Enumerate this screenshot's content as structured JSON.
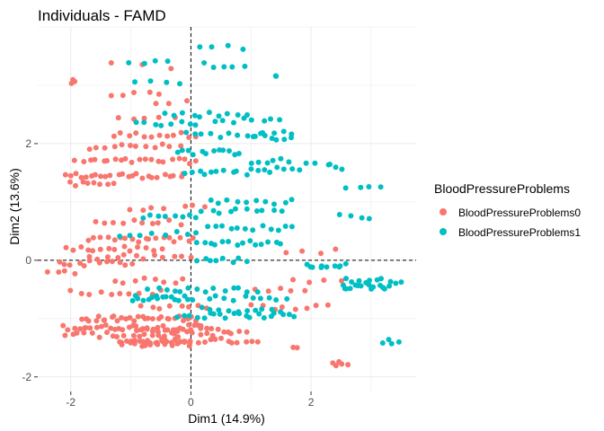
{
  "chart_data": {
    "type": "scatter",
    "title": "Individuals - FAMD",
    "xlabel": "Dim1 (14.9%)",
    "ylabel": "Dim2 (13.6%)",
    "xlim": [
      -2.55,
      3.75
    ],
    "ylim": [
      -2.25,
      4.0
    ],
    "xticks": [
      -2,
      0,
      2
    ],
    "yticks": [
      -2,
      0,
      2
    ],
    "reference_lines": {
      "x": 0,
      "y": 0
    },
    "legend": {
      "title": "BloodPressureProblems",
      "placement": "right",
      "entries": [
        {
          "label": "BloodPressureProblems0",
          "color": "#F8766D"
        },
        {
          "label": "BloodPressureProblems1",
          "color": "#00BFC4"
        }
      ]
    },
    "series": [
      {
        "name": "BloodPressureProblems0",
        "color": "#F8766D",
        "clusters": [
          {
            "x": [
              -2.0,
              -1.95
            ],
            "y": [
              3.05,
              3.05
            ],
            "n": 3
          },
          {
            "x": [
              -1.3,
              -0.35
            ],
            "y": [
              3.35,
              3.3
            ],
            "n": 3
          },
          {
            "x": [
              -1.35,
              -0.5
            ],
            "y": [
              2.85,
              2.85
            ],
            "n": 5
          },
          {
            "x": [
              -0.6,
              -0.1
            ],
            "y": [
              2.7,
              2.7
            ],
            "n": 3
          },
          {
            "x": [
              -1.2,
              -0.3
            ],
            "y": [
              2.45,
              2.45
            ],
            "n": 5
          },
          {
            "x": [
              -1.3,
              0.1
            ],
            "y": [
              2.15,
              2.15
            ],
            "n": 12
          },
          {
            "x": [
              -1.7,
              -0.2
            ],
            "y": [
              1.95,
              1.95
            ],
            "n": 12
          },
          {
            "x": [
              -1.9,
              0.1
            ],
            "y": [
              1.7,
              1.7
            ],
            "n": 20
          },
          {
            "x": [
              -2.1,
              -0.1
            ],
            "y": [
              1.45,
              1.45
            ],
            "n": 24
          },
          {
            "x": [
              -2.0,
              -1.3
            ],
            "y": [
              1.3,
              1.3
            ],
            "n": 8
          },
          {
            "x": [
              -1.0,
              -0.45
            ],
            "y": [
              0.9,
              0.9
            ],
            "n": 4
          },
          {
            "x": [
              -1.6,
              -0.2
            ],
            "y": [
              0.65,
              0.65
            ],
            "n": 10
          },
          {
            "x": [
              -1.7,
              0.05
            ],
            "y": [
              0.35,
              0.35
            ],
            "n": 18
          },
          {
            "x": [
              -2.1,
              -0.5
            ],
            "y": [
              0.2,
              0.2
            ],
            "n": 14
          },
          {
            "x": [
              -1.7,
              0.0
            ],
            "y": [
              0.05,
              0.05
            ],
            "n": 12
          },
          {
            "x": [
              -2.2,
              -1.0
            ],
            "y": [
              -0.05,
              -0.05
            ],
            "n": 12
          },
          {
            "x": [
              -2.4,
              -1.9
            ],
            "y": [
              -0.2,
              -0.2
            ],
            "n": 4
          },
          {
            "x": [
              -1.3,
              -0.1
            ],
            "y": [
              -0.35,
              -0.35
            ],
            "n": 8
          },
          {
            "x": [
              -2.0,
              -0.5
            ],
            "y": [
              -0.55,
              -0.55
            ],
            "n": 10
          },
          {
            "x": [
              -0.8,
              0.3
            ],
            "y": [
              -0.8,
              -0.8
            ],
            "n": 8
          },
          {
            "x": [
              -1.8,
              0.1
            ],
            "y": [
              -1.0,
              -1.0
            ],
            "n": 30
          },
          {
            "x": [
              -2.1,
              0.2
            ],
            "y": [
              -1.15,
              -1.15
            ],
            "n": 32
          },
          {
            "x": [
              -0.9,
              0.6
            ],
            "y": [
              -1.2,
              -1.2
            ],
            "n": 14
          },
          {
            "x": [
              -2.1,
              -0.2
            ],
            "y": [
              -1.28,
              -1.28
            ],
            "n": 18
          },
          {
            "x": [
              -1.2,
              0.0
            ],
            "y": [
              -1.43,
              -1.43
            ],
            "n": 28
          },
          {
            "x": [
              -1.0,
              1.1
            ],
            "y": [
              -1.38,
              -1.38
            ],
            "n": 22
          },
          {
            "x": [
              0.0,
              0.9
            ],
            "y": [
              -1.25,
              -1.25
            ],
            "n": 8
          },
          {
            "x": [
              1.0,
              2.3
            ],
            "y": [
              -0.8,
              -0.8
            ],
            "n": 8
          },
          {
            "x": [
              1.1,
              1.9
            ],
            "y": [
              -0.5,
              -0.5
            ],
            "n": 5
          },
          {
            "x": [
              1.7,
              2.5
            ],
            "y": [
              -0.35,
              -0.35
            ],
            "n": 4
          },
          {
            "x": [
              1.6,
              2.4
            ],
            "y": [
              0.15,
              0.15
            ],
            "n": 4
          },
          {
            "x": [
              1.7,
              1.8
            ],
            "y": [
              -1.5,
              -1.5
            ],
            "n": 2
          },
          {
            "x": [
              2.4,
              2.6
            ],
            "y": [
              -1.8,
              -1.75
            ],
            "n": 5
          },
          {
            "x": [
              -0.1,
              0.2
            ],
            "y": [
              0.9,
              0.95
            ],
            "n": 3
          }
        ]
      },
      {
        "name": "BloodPressureProblems1",
        "color": "#00BFC4",
        "clusters": [
          {
            "x": [
              0.15,
              0.85
            ],
            "y": [
              3.65,
              3.65
            ],
            "n": 4
          },
          {
            "x": [
              -1.0,
              -0.4
            ],
            "y": [
              3.4,
              3.4
            ],
            "n": 4
          },
          {
            "x": [
              0.2,
              0.9
            ],
            "y": [
              3.35,
              3.35
            ],
            "n": 5
          },
          {
            "x": [
              1.4,
              1.45
            ],
            "y": [
              3.2,
              3.2
            ],
            "n": 2
          },
          {
            "x": [
              -0.9,
              -0.2
            ],
            "y": [
              3.05,
              3.05
            ],
            "n": 4
          },
          {
            "x": [
              -0.4,
              0.9
            ],
            "y": [
              2.5,
              2.5
            ],
            "n": 10
          },
          {
            "x": [
              0.4,
              1.5
            ],
            "y": [
              2.4,
              2.4
            ],
            "n": 8
          },
          {
            "x": [
              -0.9,
              0.1
            ],
            "y": [
              2.35,
              2.35
            ],
            "n": 8
          },
          {
            "x": [
              -0.1,
              1.2
            ],
            "y": [
              2.15,
              2.15
            ],
            "n": 10
          },
          {
            "x": [
              1.1,
              1.7
            ],
            "y": [
              2.1,
              2.1
            ],
            "n": 6
          },
          {
            "x": [
              1.2,
              1.7
            ],
            "y": [
              2.2,
              2.2
            ],
            "n": 4
          },
          {
            "x": [
              -0.2,
              0.8
            ],
            "y": [
              1.85,
              1.85
            ],
            "n": 12
          },
          {
            "x": [
              1.0,
              1.6
            ],
            "y": [
              1.7,
              1.7
            ],
            "n": 6
          },
          {
            "x": [
              -0.1,
              0.9
            ],
            "y": [
              1.5,
              1.5
            ],
            "n": 10
          },
          {
            "x": [
              1.0,
              1.8
            ],
            "y": [
              1.55,
              1.55
            ],
            "n": 8
          },
          {
            "x": [
              1.9,
              2.3
            ],
            "y": [
              1.65,
              1.65
            ],
            "n": 3
          },
          {
            "x": [
              2.3,
              2.5
            ],
            "y": [
              1.6,
              1.6
            ],
            "n": 3
          },
          {
            "x": [
              2.6,
              3.2
            ],
            "y": [
              1.25,
              1.25
            ],
            "n": 4
          },
          {
            "x": [
              0.3,
              1.7
            ],
            "y": [
              1.0,
              1.0
            ],
            "n": 10
          },
          {
            "x": [
              -0.8,
              0.1
            ],
            "y": [
              0.75,
              0.75
            ],
            "n": 8
          },
          {
            "x": [
              0.2,
              1.5
            ],
            "y": [
              0.85,
              0.85
            ],
            "n": 10
          },
          {
            "x": [
              2.5,
              3.0
            ],
            "y": [
              0.75,
              0.75
            ],
            "n": 4
          },
          {
            "x": [
              0.3,
              1.7
            ],
            "y": [
              0.55,
              0.55
            ],
            "n": 12
          },
          {
            "x": [
              -1.2,
              0.1
            ],
            "y": [
              0.45,
              0.45
            ],
            "n": 8
          },
          {
            "x": [
              0.1,
              1.5
            ],
            "y": [
              0.3,
              0.3
            ],
            "n": 14
          },
          {
            "x": [
              0.1,
              0.9
            ],
            "y": [
              0.0,
              0.0
            ],
            "n": 8
          },
          {
            "x": [
              1.9,
              2.6
            ],
            "y": [
              -0.1,
              -0.1
            ],
            "n": 10
          },
          {
            "x": [
              2.5,
              3.3
            ],
            "y": [
              -0.45,
              -0.45
            ],
            "n": 14
          },
          {
            "x": [
              2.6,
              3.5
            ],
            "y": [
              -0.35,
              -0.35
            ],
            "n": 10
          },
          {
            "x": [
              -1.0,
              0.0
            ],
            "y": [
              -0.65,
              -0.65
            ],
            "n": 16
          },
          {
            "x": [
              -0.7,
              1.1
            ],
            "y": [
              -0.5,
              -0.5
            ],
            "n": 14
          },
          {
            "x": [
              0.3,
              1.6
            ],
            "y": [
              -0.65,
              -0.65
            ],
            "n": 10
          },
          {
            "x": [
              -0.2,
              1.7
            ],
            "y": [
              -0.95,
              -0.95
            ],
            "n": 20
          },
          {
            "x": [
              0.2,
              1.5
            ],
            "y": [
              -0.85,
              -0.85
            ],
            "n": 10
          },
          {
            "x": [
              3.2,
              3.45
            ],
            "y": [
              -1.4,
              -1.4
            ],
            "n": 4
          }
        ]
      }
    ]
  }
}
